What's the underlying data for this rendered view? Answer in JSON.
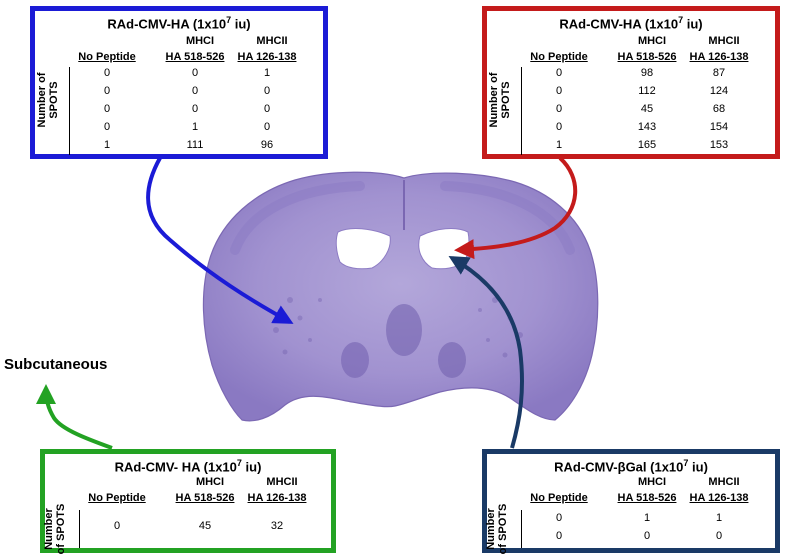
{
  "colors": {
    "top_left_border": "#1b1bd6",
    "top_right_border": "#c41b1b",
    "bottom_left_border": "#23a223",
    "bottom_right_border": "#1a3a66",
    "tissue": "#9c8ccb",
    "tissue_dark": "#7b68b3"
  },
  "labels": {
    "subcutaneous": "Subcutaneous"
  },
  "panels": {
    "top_left": {
      "title_main": "RAd-CMV-HA (1x10",
      "title_exp": "7",
      "title_end": " iu)",
      "mhc1": "MHCI",
      "mhc2": "MHCII",
      "col_none": "No Peptide",
      "col_ha1": "HA 518-526",
      "col_ha2": "HA 126-138",
      "ylabel_1": "Number of",
      "ylabel_2": "SPOTS",
      "rows": [
        [
          "0",
          "0",
          "1"
        ],
        [
          "0",
          "0",
          "0"
        ],
        [
          "0",
          "0",
          "0"
        ],
        [
          "0",
          "1",
          "0"
        ],
        [
          "1",
          "111",
          "96"
        ]
      ]
    },
    "top_right": {
      "title_main": "RAd-CMV-HA (1x10",
      "title_exp": "7",
      "title_end": " iu)",
      "mhc1": "MHCI",
      "mhc2": "MHCII",
      "col_none": "No Peptide",
      "col_ha1": "HA 518-526",
      "col_ha2": "HA 126-138",
      "ylabel_1": "Number of",
      "ylabel_2": "SPOTS",
      "rows": [
        [
          "0",
          "98",
          "87"
        ],
        [
          "0",
          "112",
          "124"
        ],
        [
          "0",
          "45",
          "68"
        ],
        [
          "0",
          "143",
          "154"
        ],
        [
          "1",
          "165",
          "153"
        ]
      ]
    },
    "bottom_left": {
      "title_main": "RAd-CMV- HA  (1x10",
      "title_exp": "7",
      "title_end": " iu)",
      "mhc1": "MHCI",
      "mhc2": "MHCII",
      "col_none": "No Peptide",
      "col_ha1": "HA 518-526",
      "col_ha2": "HA 126-138",
      "ylabel_1": "Number",
      "ylabel_2": "of SPOTS",
      "rows": [
        [
          "0",
          "45",
          "32"
        ]
      ]
    },
    "bottom_right": {
      "title_main": "RAd-CMV-βGal (1x10",
      "title_exp": "7",
      "title_end": " iu)",
      "mhc1": "MHCI",
      "mhc2": "MHCII",
      "col_none": "No Peptide",
      "col_ha1": "HA 518-526",
      "col_ha2": "HA 126-138",
      "ylabel_1": "Number",
      "ylabel_2": "of SPOTS",
      "rows": [
        [
          "0",
          "1",
          "1"
        ],
        [
          "0",
          "0",
          "0"
        ]
      ]
    }
  }
}
